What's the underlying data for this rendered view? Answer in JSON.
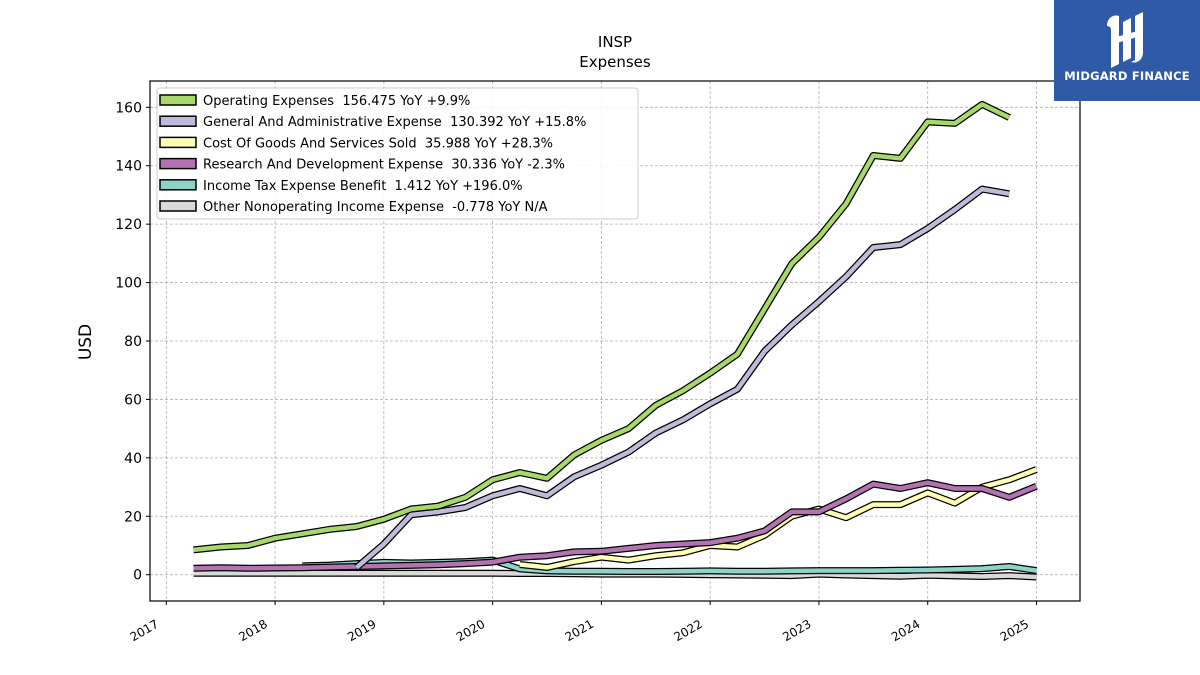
{
  "brand": {
    "name": "MIDGARD FINANCE"
  },
  "chart_data": {
    "type": "line",
    "title": "INSP",
    "subtitle": "Expenses",
    "xlabel": "",
    "ylabel": "USD",
    "xlim": [
      2016.85,
      2025.4
    ],
    "ylim": [
      -9,
      169
    ],
    "x_ticks": [
      2017,
      2018,
      2019,
      2020,
      2021,
      2022,
      2023,
      2024,
      2025
    ],
    "x_tick_labels": [
      "2017",
      "2018",
      "2019",
      "2020",
      "2021",
      "2022",
      "2023",
      "2024",
      "2025"
    ],
    "y_ticks": [
      0,
      20,
      40,
      60,
      80,
      100,
      120,
      140,
      160
    ],
    "y_tick_labels": [
      "0",
      "20",
      "40",
      "60",
      "80",
      "100",
      "120",
      "140",
      "160"
    ],
    "grid": true,
    "legend_position": "top-left",
    "x": [
      2017.25,
      2017.5,
      2017.75,
      2018.0,
      2018.25,
      2018.5,
      2018.75,
      2019.0,
      2019.25,
      2019.5,
      2019.75,
      2020.0,
      2020.25,
      2020.5,
      2020.75,
      2021.0,
      2021.25,
      2021.5,
      2021.75,
      2022.0,
      2022.25,
      2022.5,
      2022.75,
      2023.0,
      2023.25,
      2023.5,
      2023.75,
      2024.0,
      2024.25,
      2024.5,
      2024.75,
      2025.0
    ],
    "series": [
      {
        "name": "Operating Expenses",
        "legend": "Operating Expenses  156.475 YoY +9.9%",
        "color": "#a6d96a",
        "values": [
          8.5,
          9.5,
          10,
          12.5,
          14,
          15.5,
          16.5,
          19,
          22.5,
          23.5,
          26.5,
          32.5,
          35,
          33,
          41,
          46,
          50,
          58,
          63,
          69,
          75.5,
          91,
          106.5,
          115.5,
          127,
          143.5,
          142.5,
          155,
          154.5,
          161,
          156.5,
          null
        ]
      },
      {
        "name": "General And Administrative Expense",
        "legend": "General And Administrative Expense  130.392 YoY +15.8%",
        "color": "#bebada",
        "values": [
          null,
          null,
          null,
          null,
          null,
          null,
          2.5,
          10.5,
          20.5,
          21.5,
          23,
          27,
          29.5,
          27,
          33.5,
          37.5,
          42,
          48.5,
          53,
          58.5,
          63.5,
          76.5,
          85.5,
          93.5,
          102,
          112,
          113,
          118.5,
          125,
          132,
          130.4,
          null
        ]
      },
      {
        "name": "Cost Of Goods And Services Sold",
        "legend": "Cost Of Goods And Services Sold  35.988 YoY +28.3%",
        "color": "#ffffb3",
        "values": [
          null,
          null,
          null,
          null,
          null,
          null,
          null,
          null,
          null,
          null,
          null,
          null,
          3.5,
          2.5,
          4.5,
          6,
          5,
          6.5,
          7.5,
          10,
          9.5,
          13.5,
          20,
          22.5,
          19.5,
          24,
          24,
          28,
          24.5,
          30,
          32.5,
          36
        ]
      },
      {
        "name": "Research And Development Expense",
        "legend": "Research And Development Expense  30.336 YoY -2.3%",
        "color": "#b373b3",
        "values": [
          2.2,
          2.4,
          2.2,
          2.3,
          2.4,
          2.6,
          2.8,
          3.0,
          3.2,
          3.4,
          3.8,
          4.3,
          6,
          6.5,
          7.8,
          8,
          9,
          10,
          10.5,
          11,
          12.5,
          15,
          21.5,
          21.5,
          26,
          31,
          29.5,
          31.5,
          29.5,
          29.5,
          26.5,
          30.3
        ]
      },
      {
        "name": "Income Tax Expense Benefit",
        "legend": "Income Tax Expense Benefit  1.412 YoY +196.0%",
        "color": "#8dd3c7",
        "values": [
          null,
          null,
          null,
          null,
          3.0,
          3.3,
          3.8,
          4.2,
          4.0,
          4.2,
          4.5,
          5.0,
          2.0,
          1.3,
          1.2,
          1.2,
          1.1,
          1.1,
          1.2,
          1.3,
          1.2,
          1.2,
          1.3,
          1.4,
          1.4,
          1.4,
          1.5,
          1.6,
          1.8,
          2.1,
          2.8,
          1.4
        ]
      },
      {
        "name": "Other Nonoperating Income Expense",
        "legend": "Other Nonoperating Income Expense  -0.778 YoY N/A",
        "color": "#d9d9d9",
        "values": [
          0.5,
          0.5,
          0.5,
          0.5,
          0.5,
          0.5,
          0.5,
          0.5,
          0.5,
          0.5,
          0.5,
          0.5,
          0.4,
          0.4,
          0.3,
          0.2,
          0.2,
          0.2,
          0.1,
          0.0,
          -0.1,
          -0.2,
          -0.3,
          0.2,
          -0.1,
          -0.3,
          -0.5,
          -0.2,
          -0.4,
          -0.6,
          -0.3,
          -0.8
        ]
      }
    ]
  }
}
